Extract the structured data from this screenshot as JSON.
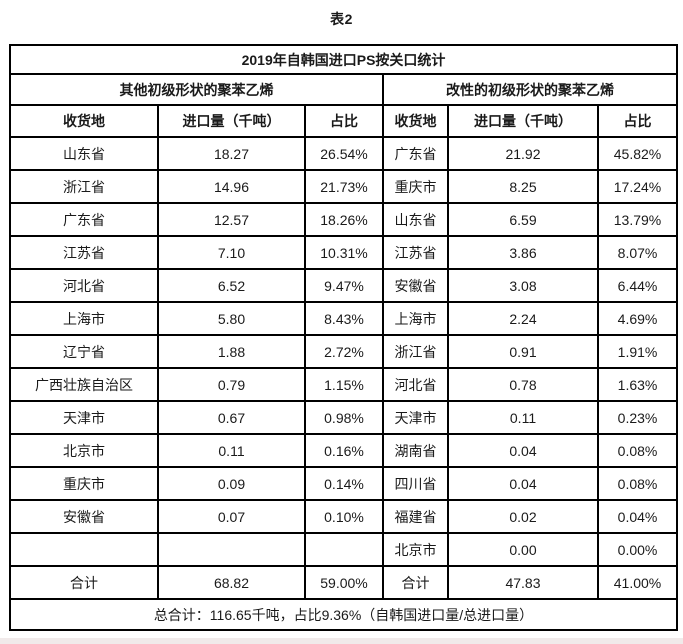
{
  "page": {
    "caption": "表2"
  },
  "table": {
    "title": "2019年自韩国进口PS按关口统计",
    "groups": [
      {
        "label": "其他初级形状的聚苯乙烯"
      },
      {
        "label": "改性的初级形状的聚苯乙烯"
      }
    ],
    "columns": [
      "收货地",
      "进口量（千吨）",
      "占比"
    ],
    "rows": [
      {
        "l": [
          "山东省",
          "18.27",
          "26.54%"
        ],
        "r": [
          "广东省",
          "21.92",
          "45.82%"
        ]
      },
      {
        "l": [
          "浙江省",
          "14.96",
          "21.73%"
        ],
        "r": [
          "重庆市",
          "8.25",
          "17.24%"
        ]
      },
      {
        "l": [
          "广东省",
          "12.57",
          "18.26%"
        ],
        "r": [
          "山东省",
          "6.59",
          "13.79%"
        ]
      },
      {
        "l": [
          "江苏省",
          "7.10",
          "10.31%"
        ],
        "r": [
          "江苏省",
          "3.86",
          "8.07%"
        ]
      },
      {
        "l": [
          "河北省",
          "6.52",
          "9.47%"
        ],
        "r": [
          "安徽省",
          "3.08",
          "6.44%"
        ]
      },
      {
        "l": [
          "上海市",
          "5.80",
          "8.43%"
        ],
        "r": [
          "上海市",
          "2.24",
          "4.69%"
        ]
      },
      {
        "l": [
          "辽宁省",
          "1.88",
          "2.72%"
        ],
        "r": [
          "浙江省",
          "0.91",
          "1.91%"
        ]
      },
      {
        "l": [
          "广西壮族自治区",
          "0.79",
          "1.15%"
        ],
        "r": [
          "河北省",
          "0.78",
          "1.63%"
        ]
      },
      {
        "l": [
          "天津市",
          "0.67",
          "0.98%"
        ],
        "r": [
          "天津市",
          "0.11",
          "0.23%"
        ]
      },
      {
        "l": [
          "北京市",
          "0.11",
          "0.16%"
        ],
        "r": [
          "湖南省",
          "0.04",
          "0.08%"
        ]
      },
      {
        "l": [
          "重庆市",
          "0.09",
          "0.14%"
        ],
        "r": [
          "四川省",
          "0.04",
          "0.08%"
        ]
      },
      {
        "l": [
          "安徽省",
          "0.07",
          "0.10%"
        ],
        "r": [
          "福建省",
          "0.02",
          "0.04%"
        ]
      },
      {
        "l": [
          "",
          "",
          ""
        ],
        "r": [
          "北京市",
          "0.00",
          "0.00%"
        ]
      }
    ],
    "total": {
      "l": [
        "合计",
        "68.82",
        "59.00%"
      ],
      "r": [
        "合计",
        "47.83",
        "41.00%"
      ]
    },
    "footer": "总合计：116.65千吨，占比9.36%（自韩国进口量/总进口量）"
  }
}
